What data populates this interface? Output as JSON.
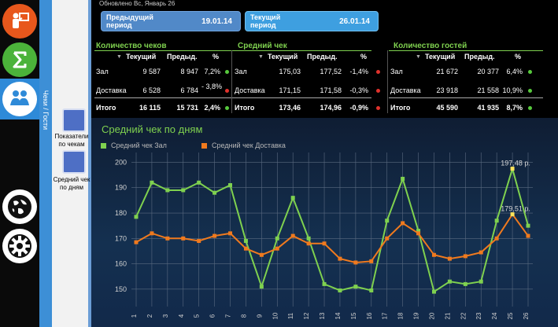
{
  "header": {
    "updated": "Обновлено Вс, Январь 26",
    "previous_period": {
      "label": "Предыдущий период",
      "value": "19.01.14"
    },
    "current_period": {
      "label": "Текущий период",
      "value": "26.01.14"
    }
  },
  "sidebar": {
    "vertical_tab": "Чеки / Гости",
    "items": [
      {
        "label": "Показатели по чекам"
      },
      {
        "label": "Средний чек по дням"
      }
    ]
  },
  "tables": [
    {
      "title": "Количество чеков",
      "columns": [
        "Текущий",
        "Предыд.",
        "%"
      ],
      "rows": [
        {
          "name": "Зал",
          "current": "9 587",
          "previous": "8 947",
          "pct": "7,2%",
          "status": "up"
        },
        {
          "name": "Доставка",
          "current": "6 528",
          "previous": "6 784",
          "pct": "- 3,8%",
          "status": "down"
        },
        {
          "name": "Итого",
          "current": "16 115",
          "previous": "15 731",
          "pct": "2,4%",
          "status": "up"
        }
      ]
    },
    {
      "title": "Средний чек",
      "columns": [
        "Текущий",
        "Предыд.",
        "%"
      ],
      "rows": [
        {
          "name": "Зал",
          "current": "175,03",
          "previous": "177,52",
          "pct": "-1,4%",
          "status": "down"
        },
        {
          "name": "Доставка",
          "current": "171,15",
          "previous": "171,58",
          "pct": "-0,3%",
          "status": "down"
        },
        {
          "name": "Итого",
          "current": "173,46",
          "previous": "174,96",
          "pct": "-0,9%",
          "status": "down"
        }
      ]
    },
    {
      "title": "Количество гостей",
      "columns": [
        "Текущий",
        "Предыд.",
        "%"
      ],
      "rows": [
        {
          "name": "Зал",
          "current": "21 672",
          "previous": "20 377",
          "pct": "6,4%",
          "status": "up"
        },
        {
          "name": "Доставка",
          "current": "23 918",
          "previous": "21 558",
          "pct": "10,9%",
          "status": "up"
        },
        {
          "name": "Итого",
          "current": "45 590",
          "previous": "41 935",
          "pct": "8,7%",
          "status": "up"
        }
      ]
    }
  ],
  "colors": {
    "green": "#7fd14f",
    "orange": "#f07a1e",
    "up": "#57c93d",
    "down": "#e0322c",
    "highlight": "#ffe35a"
  },
  "chart_data": {
    "type": "line",
    "title": "Средний чек по дням",
    "x": [
      1,
      2,
      3,
      4,
      5,
      6,
      7,
      8,
      9,
      10,
      11,
      12,
      13,
      14,
      15,
      16,
      17,
      18,
      19,
      20,
      21,
      22,
      23,
      24,
      25,
      26
    ],
    "ylim": [
      145,
      202
    ],
    "yticks": [
      150,
      160,
      170,
      180,
      190,
      200
    ],
    "grid": true,
    "legend_position": "top-left",
    "series": [
      {
        "name": "Средний чек Зал",
        "color": "#7fd14f",
        "values": [
          178.5,
          192,
          189,
          189,
          192,
          188,
          191,
          169,
          151,
          170,
          186,
          170,
          152,
          149.5,
          151,
          149.5,
          177,
          193.5,
          173,
          149,
          153,
          152,
          153,
          177,
          197.48,
          175
        ]
      },
      {
        "name": "Средний чек Доставка",
        "color": "#f07a1e",
        "values": [
          168.5,
          172,
          170,
          170,
          169,
          171,
          172,
          166,
          163.5,
          166,
          171,
          168,
          168,
          162,
          160.5,
          161,
          170,
          176,
          172,
          163.5,
          162,
          163,
          164.5,
          170,
          179.51,
          171
        ]
      }
    ],
    "annotations": [
      {
        "x": 25,
        "y": 197.48,
        "text": "197,48 р."
      },
      {
        "x": 25,
        "y": 179.51,
        "text": "179,51 р."
      }
    ]
  }
}
